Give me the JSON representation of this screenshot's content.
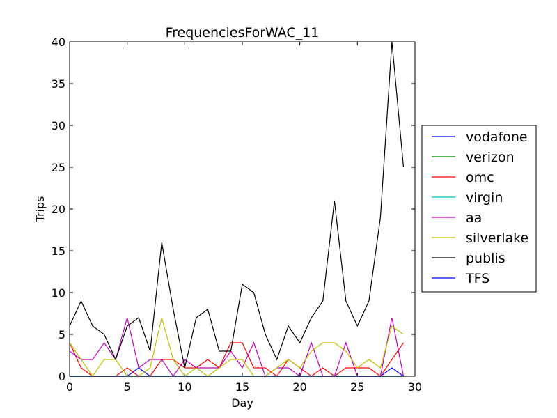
{
  "chart_data": {
    "type": "line",
    "title": "FrequenciesForWAC_11",
    "xlabel": "Day",
    "ylabel": "Trips",
    "xlim": [
      0,
      30
    ],
    "ylim": [
      0,
      40
    ],
    "xticks": [
      0,
      5,
      10,
      15,
      20,
      25,
      30
    ],
    "yticks": [
      0,
      5,
      10,
      15,
      20,
      25,
      30,
      35,
      40
    ],
    "grid": false,
    "legend_position": "right, outside the plot area",
    "x": [
      0,
      1,
      2,
      3,
      4,
      5,
      6,
      7,
      8,
      9,
      10,
      11,
      12,
      13,
      14,
      15,
      16,
      17,
      18,
      19,
      20,
      21,
      22,
      23,
      24,
      25,
      26,
      27,
      28,
      29
    ],
    "series": [
      {
        "name": "vodafone",
        "color": "#0000ff",
        "values": [
          0,
          0,
          0,
          0,
          0,
          0,
          1,
          0,
          0,
          0,
          0,
          0,
          0,
          0,
          0,
          0,
          0,
          0,
          0,
          0,
          0,
          0,
          0,
          0,
          0,
          0,
          0,
          0,
          1,
          0
        ]
      },
      {
        "name": "verizon",
        "color": "#008000",
        "values": [
          0,
          0,
          0,
          0,
          0,
          0,
          0,
          0,
          0,
          0,
          0,
          0,
          0,
          0,
          0,
          0,
          0,
          0,
          0,
          0,
          0,
          0,
          0,
          0,
          0,
          0,
          0,
          0,
          0,
          0
        ]
      },
      {
        "name": "omc",
        "color": "#ff0000",
        "values": [
          4,
          1,
          0,
          0,
          0,
          1,
          0,
          0,
          2,
          2,
          1,
          1,
          2,
          1,
          4,
          4,
          1,
          1,
          0,
          2,
          1,
          0,
          1,
          0,
          1,
          1,
          1,
          0,
          2,
          4
        ]
      },
      {
        "name": "virgin",
        "color": "#00bfbf",
        "values": [
          0,
          0,
          0,
          0,
          0,
          0,
          0,
          0,
          0,
          0,
          0,
          0,
          0,
          0,
          0,
          0,
          0,
          0,
          0,
          0,
          0,
          0,
          0,
          0,
          0,
          0,
          0,
          0,
          0,
          0
        ]
      },
      {
        "name": "aa",
        "color": "#bf00bf",
        "values": [
          3,
          2,
          2,
          4,
          2,
          7,
          1,
          2,
          2,
          0,
          2,
          1,
          1,
          1,
          3,
          1,
          4,
          0,
          1,
          1,
          0,
          4,
          0,
          0,
          4,
          0,
          0,
          0,
          7,
          0
        ]
      },
      {
        "name": "silverlake",
        "color": "#bfbf00",
        "values": [
          4,
          2,
          0,
          2,
          2,
          0,
          0,
          1,
          7,
          2,
          0,
          1,
          0,
          1,
          2,
          2,
          0,
          0,
          1,
          2,
          1,
          3,
          4,
          4,
          3,
          1,
          2,
          1,
          6,
          5
        ]
      },
      {
        "name": "publis",
        "color": "#000000",
        "values": [
          6,
          9,
          6,
          5,
          2,
          6,
          7,
          3,
          16,
          8,
          1,
          7,
          8,
          3,
          3,
          11,
          10,
          5,
          2,
          6,
          4,
          7,
          9,
          21,
          9,
          6,
          9,
          19,
          40,
          25
        ]
      },
      {
        "name": "TFS",
        "color": "#0000ff",
        "values": [
          0,
          0,
          0,
          0,
          0,
          0,
          0,
          0,
          0,
          0,
          0,
          0,
          0,
          0,
          0,
          0,
          0,
          0,
          0,
          0,
          0,
          0,
          0,
          0,
          0,
          0,
          0,
          0,
          0,
          0
        ]
      }
    ]
  }
}
